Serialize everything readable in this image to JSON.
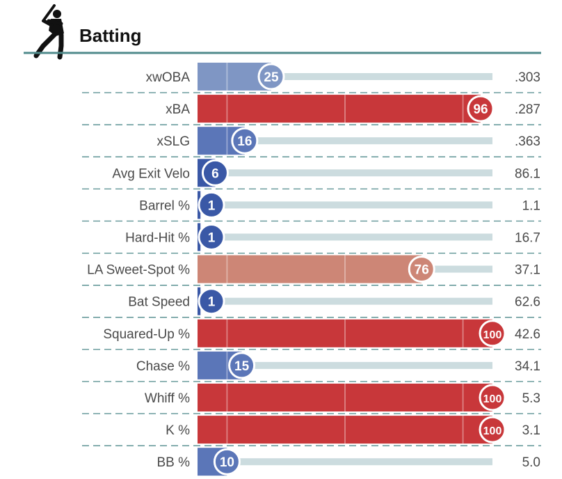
{
  "header": {
    "title": "Batting",
    "icon": "batter-silhouette-icon",
    "rule_color": "#4f8a8b"
  },
  "colors": {
    "track": "#ccdcdf",
    "divider": "#4f8a8b",
    "blue_strong": "#3a58a6",
    "blue_mid": "#5b76b8",
    "blue_light": "#7f96c4",
    "red_light": "#cd8676",
    "red_strong": "#c8373a"
  },
  "chart_data": {
    "type": "bar",
    "orientation": "horizontal",
    "title": "Batting",
    "xlim": [
      0,
      100
    ],
    "x_reference_lines": [
      10,
      50,
      90
    ],
    "categories": [
      "xwOBA",
      "xBA",
      "xSLG",
      "Avg Exit Velo",
      "Barrel %",
      "Hard-Hit %",
      "LA Sweet-Spot %",
      "Bat Speed",
      "Squared-Up %",
      "Chase %",
      "Whiff %",
      "K %",
      "BB %"
    ],
    "series": [
      {
        "name": "Percentile",
        "values": [
          25,
          96,
          16,
          6,
          1,
          1,
          76,
          1,
          100,
          15,
          100,
          100,
          10
        ]
      }
    ],
    "stat_values": [
      ".303",
      ".287",
      ".363",
      "86.1",
      "1.1",
      "16.7",
      "37.1",
      "62.6",
      "42.6",
      "34.1",
      "5.3",
      "3.1",
      "5.0"
    ]
  }
}
